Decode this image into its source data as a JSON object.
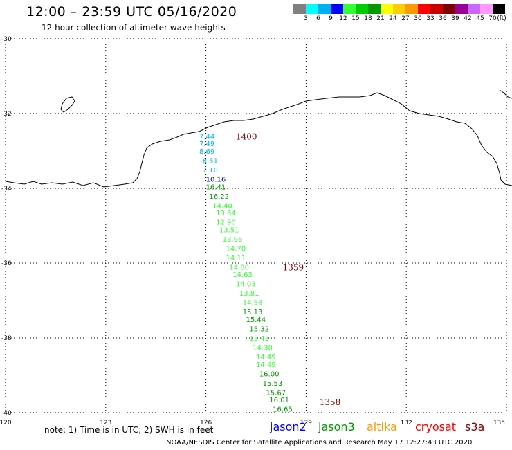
{
  "header": {
    "title": "12:00 – 23:59 UTC 05/16/2020",
    "subtitle": "12 hour collection of altimeter wave heights"
  },
  "colorbar": {
    "colors": [
      "#808080",
      "#00ffff",
      "#00b0f0",
      "#0000ff",
      "#33ff33",
      "#00cc00",
      "#009900",
      "#ffff00",
      "#ffcc00",
      "#ff9900",
      "#ff0000",
      "#cc0000",
      "#800000",
      "#990099",
      "#cc66ff",
      "#ff99ff",
      "#000000"
    ],
    "labels": [
      "3",
      "6",
      "9",
      "12",
      "15",
      "18",
      "21",
      "24",
      "27",
      "30",
      "33",
      "36",
      "39",
      "42",
      "45",
      "70",
      "(ft)"
    ]
  },
  "map": {
    "lon_ticks": [
      "120",
      "123",
      "126",
      "129",
      "132",
      "135"
    ],
    "lat_ticks": [
      "-30",
      "-32",
      "-34",
      "-36",
      "-38",
      "-40"
    ]
  },
  "chart_data": {
    "type": "scatter",
    "xlim": [
      120,
      135
    ],
    "ylim": [
      -40,
      -30
    ],
    "time_labels": [
      {
        "text": "1400",
        "lon": 126.9,
        "lat": -32.6,
        "color": "#800000"
      },
      {
        "text": "1359",
        "lon": 128.3,
        "lat": -36.1,
        "color": "#800000"
      },
      {
        "text": "1358",
        "lon": 129.4,
        "lat": -39.7,
        "color": "#800000"
      }
    ],
    "points": [
      {
        "text": "7.44",
        "lon": 125.8,
        "lat": -32.6,
        "color": "#00b0f0"
      },
      {
        "text": "7.49",
        "lon": 125.8,
        "lat": -32.8,
        "color": "#00b0f0"
      },
      {
        "text": "8.69",
        "lon": 125.8,
        "lat": -33.0,
        "color": "#00b0f0"
      },
      {
        "text": "8.51",
        "lon": 125.9,
        "lat": -33.25,
        "color": "#00b0f0"
      },
      {
        "text": "7.10",
        "lon": 125.9,
        "lat": -33.5,
        "color": "#00b0f0"
      },
      {
        "text": "10.16",
        "lon": 126.0,
        "lat": -33.75,
        "color": "#0000cc"
      },
      {
        "text": "16.41",
        "lon": 126.0,
        "lat": -33.95,
        "color": "#009900"
      },
      {
        "text": "16.22",
        "lon": 126.1,
        "lat": -34.2,
        "color": "#009900"
      },
      {
        "text": "14.40",
        "lon": 126.2,
        "lat": -34.45,
        "color": "#33ff33"
      },
      {
        "text": "13.64",
        "lon": 126.3,
        "lat": -34.65,
        "color": "#33ff33"
      },
      {
        "text": "12.90",
        "lon": 126.3,
        "lat": -34.9,
        "color": "#33ff33"
      },
      {
        "text": "13.51",
        "lon": 126.4,
        "lat": -35.1,
        "color": "#33ff33"
      },
      {
        "text": "13.96",
        "lon": 126.5,
        "lat": -35.35,
        "color": "#33ff33"
      },
      {
        "text": "14.70",
        "lon": 126.6,
        "lat": -35.6,
        "color": "#33ff33"
      },
      {
        "text": "14.11",
        "lon": 126.6,
        "lat": -35.85,
        "color": "#33ff33"
      },
      {
        "text": "14.80",
        "lon": 126.7,
        "lat": -36.1,
        "color": "#33ff33"
      },
      {
        "text": "14.63",
        "lon": 126.8,
        "lat": -36.3,
        "color": "#33ff33"
      },
      {
        "text": "14.03",
        "lon": 126.9,
        "lat": -36.55,
        "color": "#33ff33"
      },
      {
        "text": "13.81",
        "lon": 127.0,
        "lat": -36.8,
        "color": "#33ff33"
      },
      {
        "text": "14.58",
        "lon": 127.1,
        "lat": -37.05,
        "color": "#33ff33"
      },
      {
        "text": "15.13",
        "lon": 127.1,
        "lat": -37.3,
        "color": "#009900"
      },
      {
        "text": "15.44",
        "lon": 127.2,
        "lat": -37.5,
        "color": "#009900"
      },
      {
        "text": "15.32",
        "lon": 127.3,
        "lat": -37.75,
        "color": "#009900"
      },
      {
        "text": "13.43",
        "lon": 127.3,
        "lat": -38.0,
        "color": "#33ff33"
      },
      {
        "text": "14.30",
        "lon": 127.4,
        "lat": -38.25,
        "color": "#33ff33"
      },
      {
        "text": "14.49",
        "lon": 127.5,
        "lat": -38.5,
        "color": "#33ff33"
      },
      {
        "text": "14.49",
        "lon": 127.5,
        "lat": -38.7,
        "color": "#33ff33"
      },
      {
        "text": "16.00",
        "lon": 127.6,
        "lat": -38.95,
        "color": "#009900"
      },
      {
        "text": "15.53",
        "lon": 127.7,
        "lat": -39.2,
        "color": "#009900"
      },
      {
        "text": "15.67",
        "lon": 127.8,
        "lat": -39.45,
        "color": "#009900"
      },
      {
        "text": "16.01",
        "lon": 127.9,
        "lat": -39.65,
        "color": "#009900"
      },
      {
        "text": "16.65",
        "lon": 128.0,
        "lat": -39.9,
        "color": "#009900"
      }
    ]
  },
  "footer": {
    "note": "note: 1) Time is in UTC; 2) SWH is in feet",
    "legend": [
      {
        "text": "jason2",
        "color": "#0000ff"
      },
      {
        "text": "jason3",
        "color": "#009900"
      },
      {
        "text": "altika",
        "color": "#ff9900"
      },
      {
        "text": "cryosat",
        "color": "#ff0000"
      },
      {
        "text": "s3a",
        "color": "#800000"
      }
    ],
    "credit": "NOAA/NESDIS Center for Satellite Applications and Research    May 17 12:27:43 UTC 2020"
  }
}
